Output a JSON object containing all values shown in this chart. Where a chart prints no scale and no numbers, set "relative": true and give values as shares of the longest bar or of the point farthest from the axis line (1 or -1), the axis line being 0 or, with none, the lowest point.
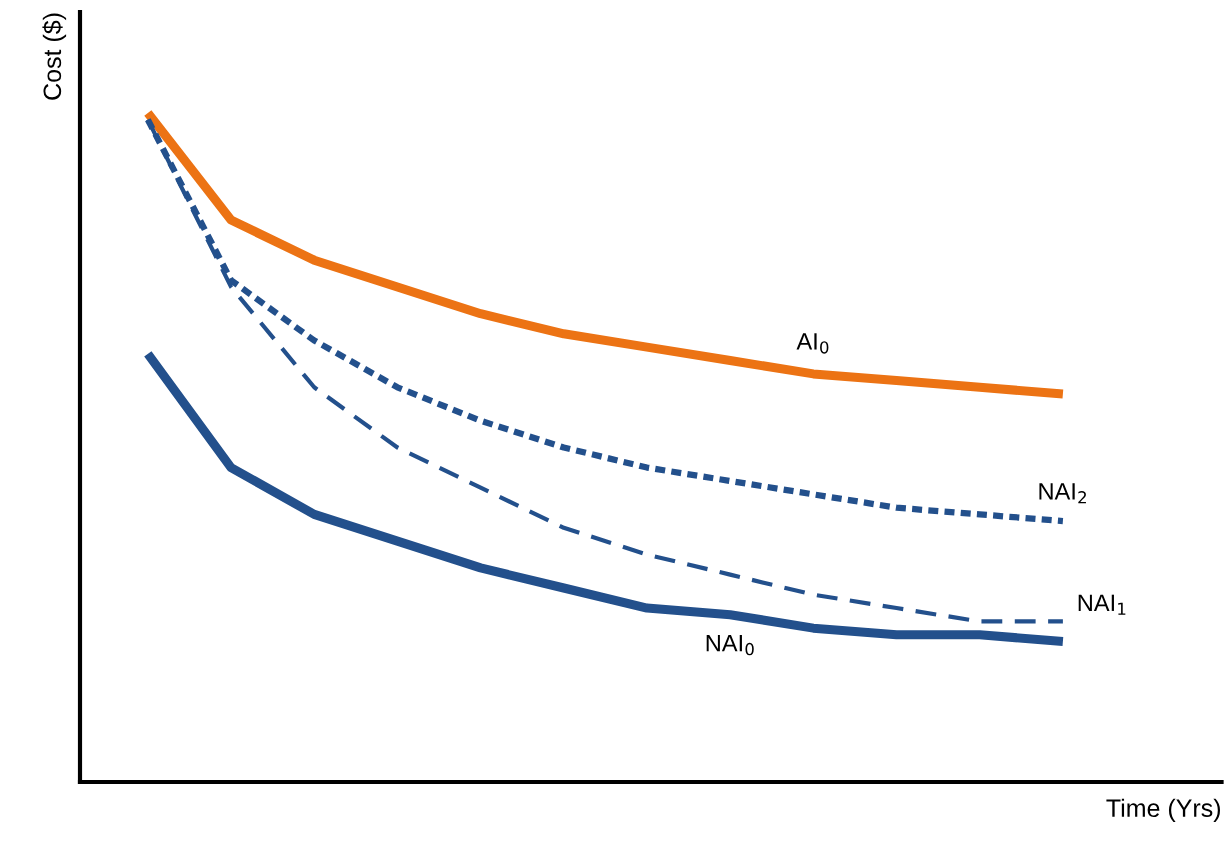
{
  "chart_data": {
    "type": "line",
    "relative": true,
    "xlabel": "Time (Yrs)",
    "ylabel": "Cost ($)",
    "categories": [
      null,
      null,
      null,
      null,
      null,
      null,
      null,
      null,
      null,
      null,
      null,
      null
    ],
    "series": [
      {
        "name": "AI$_{0}$",
        "color": "#ec7314",
        "line_style": "solid",
        "values": [
          1.0,
          0.84,
          0.78,
          0.74,
          0.7,
          0.67,
          0.65,
          0.63,
          0.61,
          0.6,
          0.59,
          0.58
        ]
      },
      {
        "name": "NAI$_{2}$",
        "color": "#23508c",
        "line_style": "dotted",
        "values": [
          0.99,
          0.75,
          0.66,
          0.59,
          0.54,
          0.5,
          0.47,
          0.45,
          0.43,
          0.41,
          0.4,
          0.39
        ]
      },
      {
        "name": "NAI$_{1}$",
        "color": "#23508c",
        "line_style": "dashed",
        "values": [
          0.99,
          0.74,
          0.59,
          0.5,
          0.44,
          0.38,
          0.34,
          0.31,
          0.28,
          0.26,
          0.24,
          0.24
        ]
      },
      {
        "name": "NAI$_{0}$",
        "color": "#23508c",
        "line_style": "solid",
        "values": [
          0.64,
          0.47,
          0.4,
          0.36,
          0.32,
          0.29,
          0.26,
          0.25,
          0.23,
          0.22,
          0.22,
          0.21
        ]
      }
    ],
    "legend": false
  }
}
